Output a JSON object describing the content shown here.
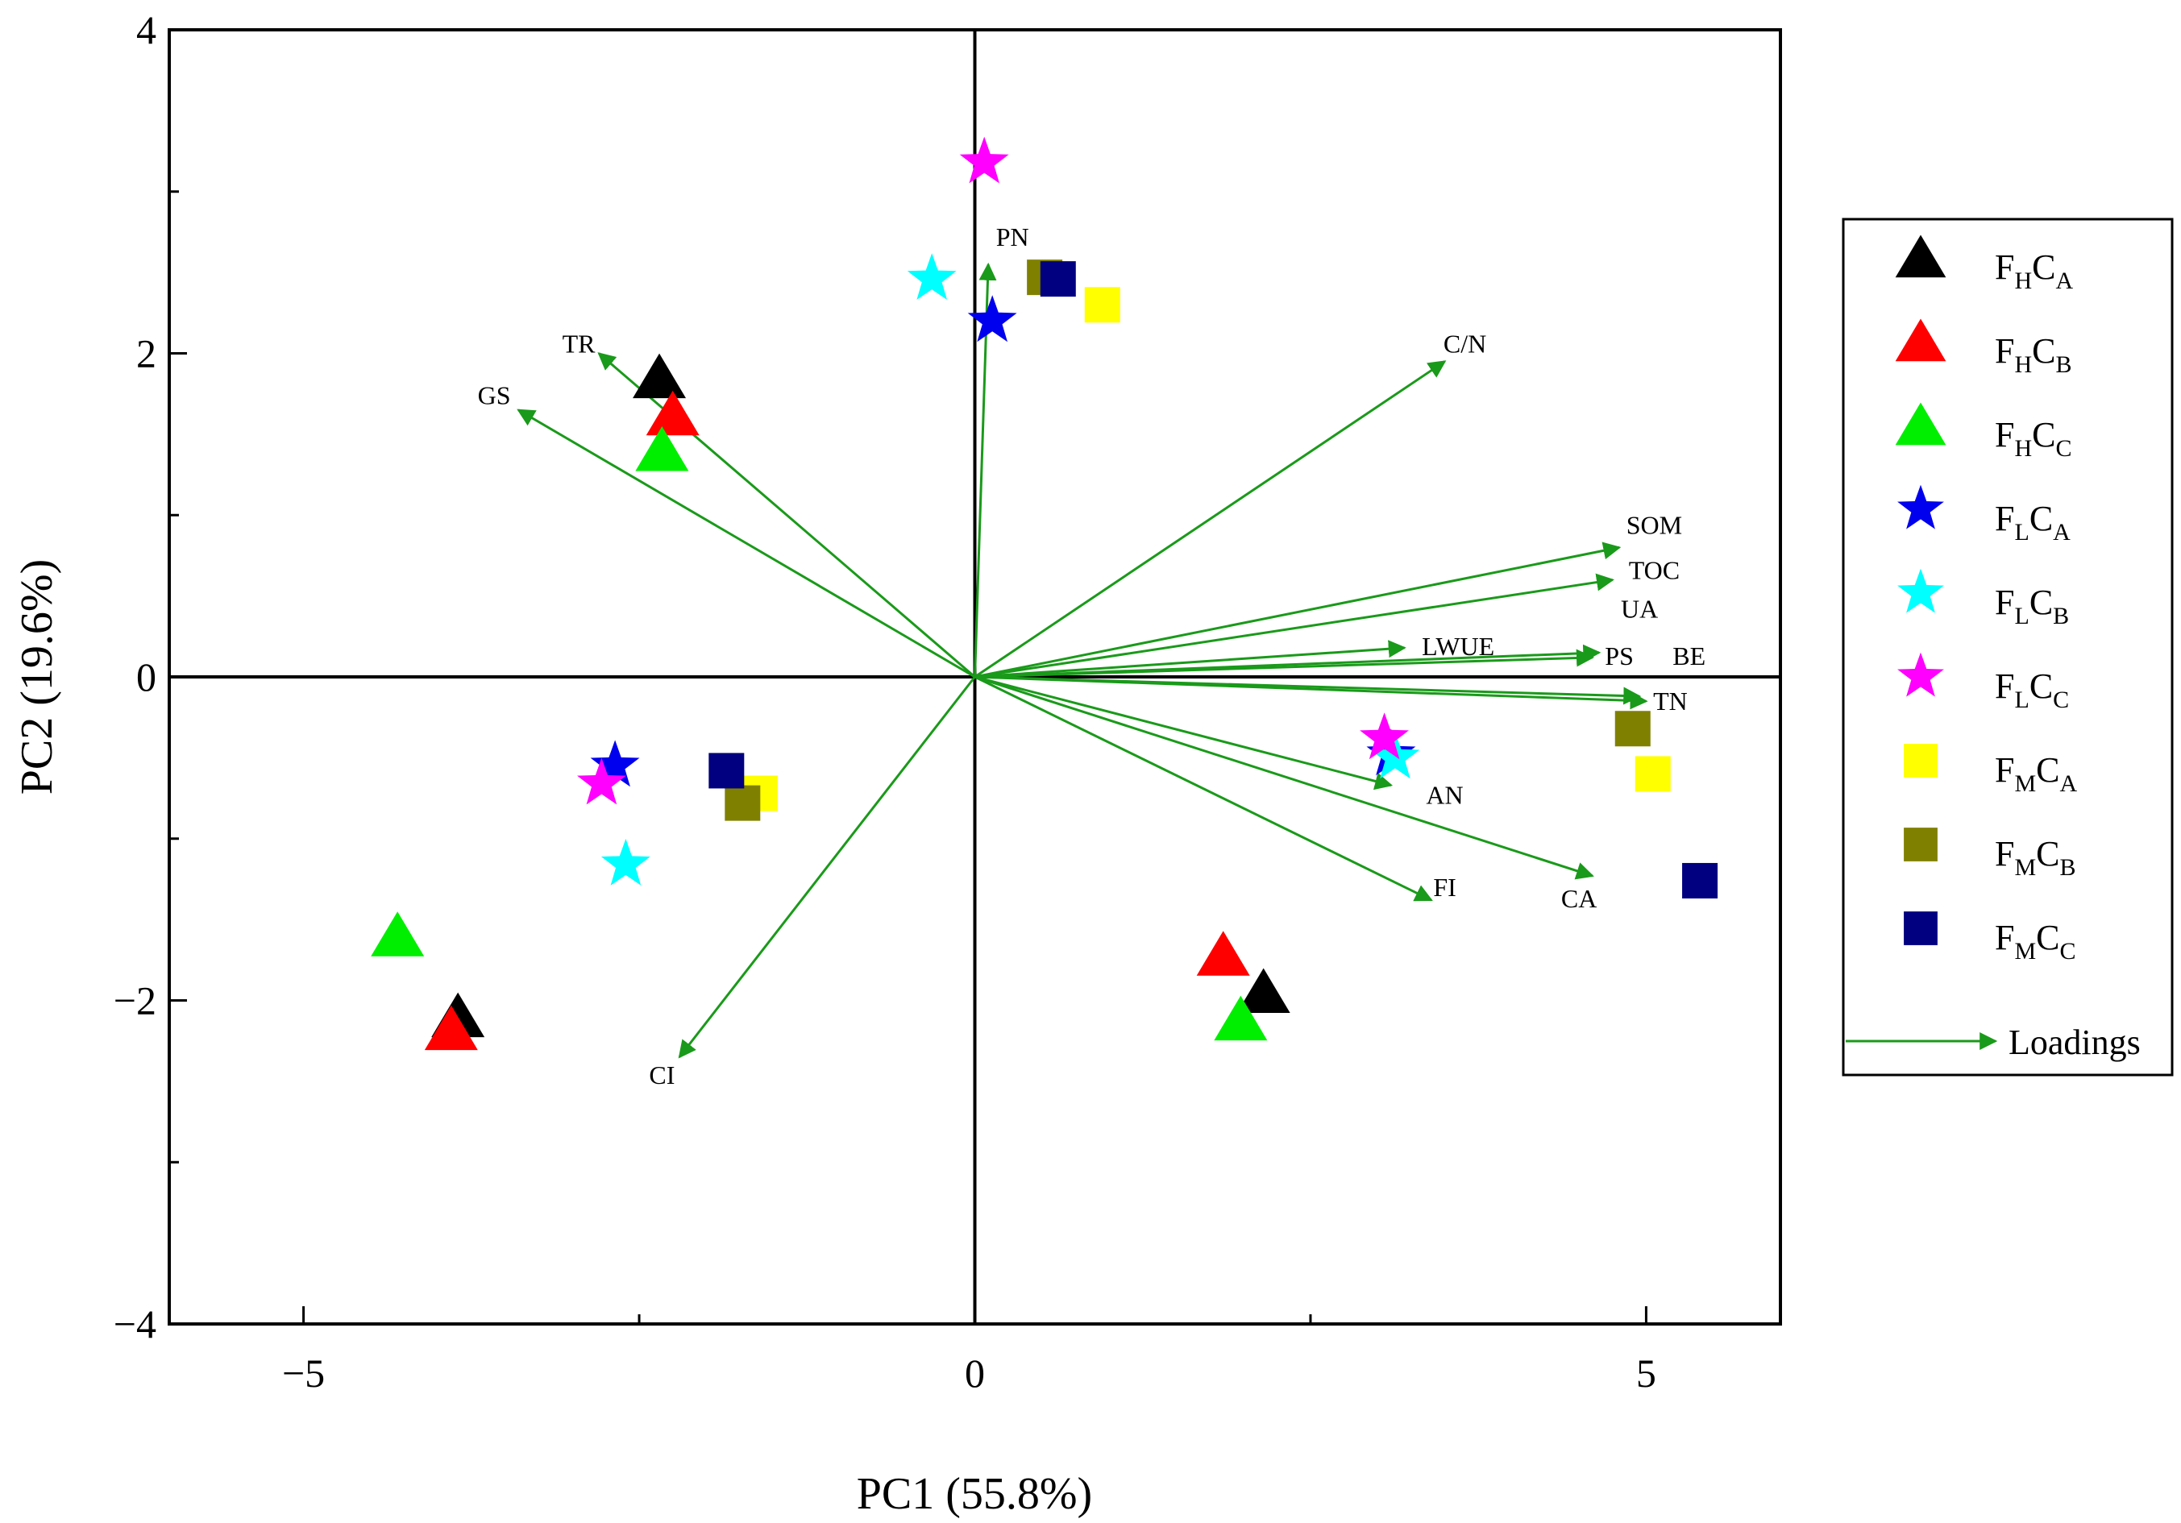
{
  "chart_data": {
    "type": "scatter",
    "subtype": "pca-biplot",
    "xlabel": "PC1 (55.8%)",
    "ylabel": "PC2 (19.6%)",
    "xlim": [
      -6,
      6
    ],
    "ylim": [
      -4,
      4
    ],
    "xticks": [
      {
        "value": -5,
        "label": "−5"
      },
      {
        "value": 0,
        "label": "0"
      },
      {
        "value": 5,
        "label": "5"
      }
    ],
    "yticks": [
      {
        "value": -4,
        "label": "−4"
      },
      {
        "value": -2,
        "label": "−2"
      },
      {
        "value": 0,
        "label": "0"
      },
      {
        "value": 2,
        "label": "2"
      },
      {
        "value": 4,
        "label": "4"
      }
    ],
    "x_minor_ticks": [
      -2.5,
      2.5
    ],
    "y_minor_ticks": [
      -3,
      -1,
      1,
      3
    ],
    "legend_position": "right",
    "colors": {
      "loadings": "#1a9a1a",
      "frame": "#000000"
    },
    "series": [
      {
        "name": "FHCA",
        "label_main": [
          "F",
          "C"
        ],
        "label_sub": [
          "H",
          "A"
        ],
        "marker": "triangle",
        "color": "#000000",
        "points": [
          [
            -2.35,
            1.85
          ],
          [
            -3.85,
            -2.1
          ],
          [
            2.15,
            -1.95
          ]
        ]
      },
      {
        "name": "FHCB",
        "label_main": [
          "F",
          "C"
        ],
        "label_sub": [
          "H",
          "B"
        ],
        "marker": "triangle",
        "color": "#ff0000",
        "points": [
          [
            -2.25,
            1.62
          ],
          [
            -3.9,
            -2.18
          ],
          [
            1.85,
            -1.72
          ]
        ]
      },
      {
        "name": "FHCC",
        "label_main": [
          "F",
          "C"
        ],
        "label_sub": [
          "H",
          "C"
        ],
        "marker": "triangle",
        "color": "#00ee00",
        "points": [
          [
            -2.33,
            1.4
          ],
          [
            -4.3,
            -1.6
          ],
          [
            1.98,
            -2.12
          ]
        ]
      },
      {
        "name": "FLCA",
        "label_main": [
          "F",
          "C"
        ],
        "label_sub": [
          "L",
          "A"
        ],
        "marker": "star",
        "color": "#0000ee",
        "points": [
          [
            0.13,
            2.2
          ],
          [
            -2.68,
            -0.55
          ],
          [
            3.1,
            -0.48
          ]
        ]
      },
      {
        "name": "FLCB",
        "label_main": [
          "F",
          "C"
        ],
        "label_sub": [
          "L",
          "B"
        ],
        "marker": "star",
        "color": "#00ffff",
        "points": [
          [
            -0.32,
            2.46
          ],
          [
            -2.6,
            -1.16
          ],
          [
            3.13,
            -0.5
          ]
        ]
      },
      {
        "name": "FLCC",
        "label_main": [
          "F",
          "C"
        ],
        "label_sub": [
          "L",
          "C"
        ],
        "marker": "star",
        "color": "#ff00ff",
        "points": [
          [
            0.07,
            3.18
          ],
          [
            -2.78,
            -0.66
          ],
          [
            3.05,
            -0.38
          ]
        ]
      },
      {
        "name": "FMCA",
        "label_main": [
          "F",
          "C"
        ],
        "label_sub": [
          "M",
          "A"
        ],
        "marker": "square",
        "color": "#ffff00",
        "points": [
          [
            0.95,
            2.3
          ],
          [
            -1.6,
            -0.72
          ],
          [
            5.05,
            -0.6
          ]
        ]
      },
      {
        "name": "FMCB",
        "label_main": [
          "F",
          "C"
        ],
        "label_sub": [
          "M",
          "B"
        ],
        "marker": "square",
        "color": "#808000",
        "points": [
          [
            0.52,
            2.47
          ],
          [
            -1.73,
            -0.78
          ],
          [
            4.9,
            -0.32
          ]
        ]
      },
      {
        "name": "FMCC",
        "label_main": [
          "F",
          "C"
        ],
        "label_sub": [
          "M",
          "C"
        ],
        "marker": "square",
        "color": "#000080",
        "points": [
          [
            0.62,
            2.46
          ],
          [
            -1.85,
            -0.58
          ],
          [
            5.4,
            -1.26
          ]
        ]
      }
    ],
    "loadings_legend_label": "Loadings",
    "loadings": [
      {
        "name": "PN",
        "x": 0.1,
        "y": 2.55,
        "label_x": 0.28,
        "label_y": 2.72
      },
      {
        "name": "TR",
        "x": -2.8,
        "y": 2.0,
        "label_x": -2.95,
        "label_y": 2.06
      },
      {
        "name": "GS",
        "x": -3.4,
        "y": 1.65,
        "label_x": -3.58,
        "label_y": 1.74
      },
      {
        "name": "C/N",
        "x": 3.5,
        "y": 1.95,
        "label_x": 3.65,
        "label_y": 2.06
      },
      {
        "name": "SOM",
        "x": 4.8,
        "y": 0.8,
        "label_x": 5.06,
        "label_y": 0.94
      },
      {
        "name": "TOC",
        "x": 4.75,
        "y": 0.6,
        "label_x": 5.06,
        "label_y": 0.66
      },
      {
        "name": "UA",
        "x": 4.6,
        "y": 0.12,
        "label_x": 4.95,
        "label_y": 0.42
      },
      {
        "name": "LWUE",
        "x": 3.2,
        "y": 0.18,
        "label_x": 3.6,
        "label_y": 0.19
      },
      {
        "name": "PS",
        "x": 4.65,
        "y": 0.15,
        "label_x": 4.8,
        "label_y": 0.13
      },
      {
        "name": "BE",
        "x": 4.95,
        "y": -0.12,
        "label_x": 5.32,
        "label_y": 0.13
      },
      {
        "name": "TN",
        "x": 5.0,
        "y": -0.15,
        "label_x": 5.18,
        "label_y": -0.15
      },
      {
        "name": "AN",
        "x": 3.1,
        "y": -0.67,
        "label_x": 3.5,
        "label_y": -0.73
      },
      {
        "name": "FI",
        "x": 3.4,
        "y": -1.38,
        "label_x": 3.5,
        "label_y": -1.3
      },
      {
        "name": "CA",
        "x": 4.6,
        "y": -1.23,
        "label_x": 4.5,
        "label_y": -1.37
      },
      {
        "name": "CI",
        "x": -2.2,
        "y": -2.35,
        "label_x": -2.33,
        "label_y": -2.46
      }
    ]
  }
}
